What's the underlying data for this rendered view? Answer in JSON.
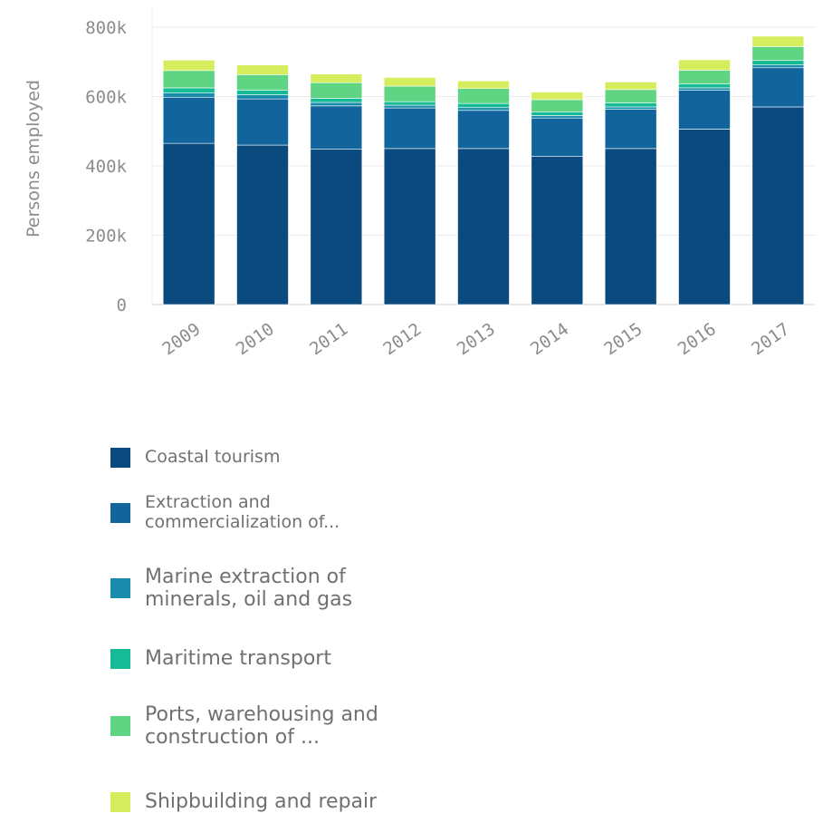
{
  "chart_data": {
    "type": "bar",
    "stacked": true,
    "title": "",
    "xlabel": "",
    "ylabel": "Persons employed",
    "ylim": [
      0,
      800000
    ],
    "yticks": [
      0,
      200000,
      400000,
      600000,
      800000
    ],
    "ytick_labels": [
      "0",
      "200k",
      "400k",
      "600k",
      "800k"
    ],
    "grid": true,
    "legend_position": "bottom",
    "categories": [
      "2009",
      "2010",
      "2011",
      "2012",
      "2013",
      "2014",
      "2015",
      "2016",
      "2017"
    ],
    "series": [
      {
        "name": "Coastal tourism",
        "color": "#0b4a7e",
        "values": [
          465000,
          460000,
          448000,
          450000,
          450000,
          428000,
          450000,
          506000,
          570000
        ]
      },
      {
        "name": "Extraction and\ncommercialization of...",
        "color": "#11649c",
        "values": [
          133000,
          133000,
          125000,
          117000,
          110000,
          110000,
          113000,
          112000,
          113000
        ]
      },
      {
        "name": "Marine extraction of\nminerals, oil and gas",
        "color": "#1a8bab",
        "values": [
          12000,
          12000,
          10000,
          8000,
          8000,
          7000,
          7000,
          7000,
          8000
        ]
      },
      {
        "name": "Maritime transport",
        "color": "#16bb96",
        "values": [
          15000,
          13000,
          12000,
          10000,
          12000,
          11000,
          12000,
          11000,
          13000
        ]
      },
      {
        "name": "Ports, warehousing and\nconstruction of ...",
        "color": "#5fd583",
        "values": [
          50000,
          45000,
          45000,
          45000,
          43000,
          35000,
          38000,
          40000,
          40000
        ]
      },
      {
        "name": "Shipbuilding and repair",
        "color": "#d6ee5e",
        "values": [
          30000,
          28000,
          25000,
          25000,
          22000,
          22000,
          22000,
          30000,
          30000
        ]
      }
    ]
  }
}
